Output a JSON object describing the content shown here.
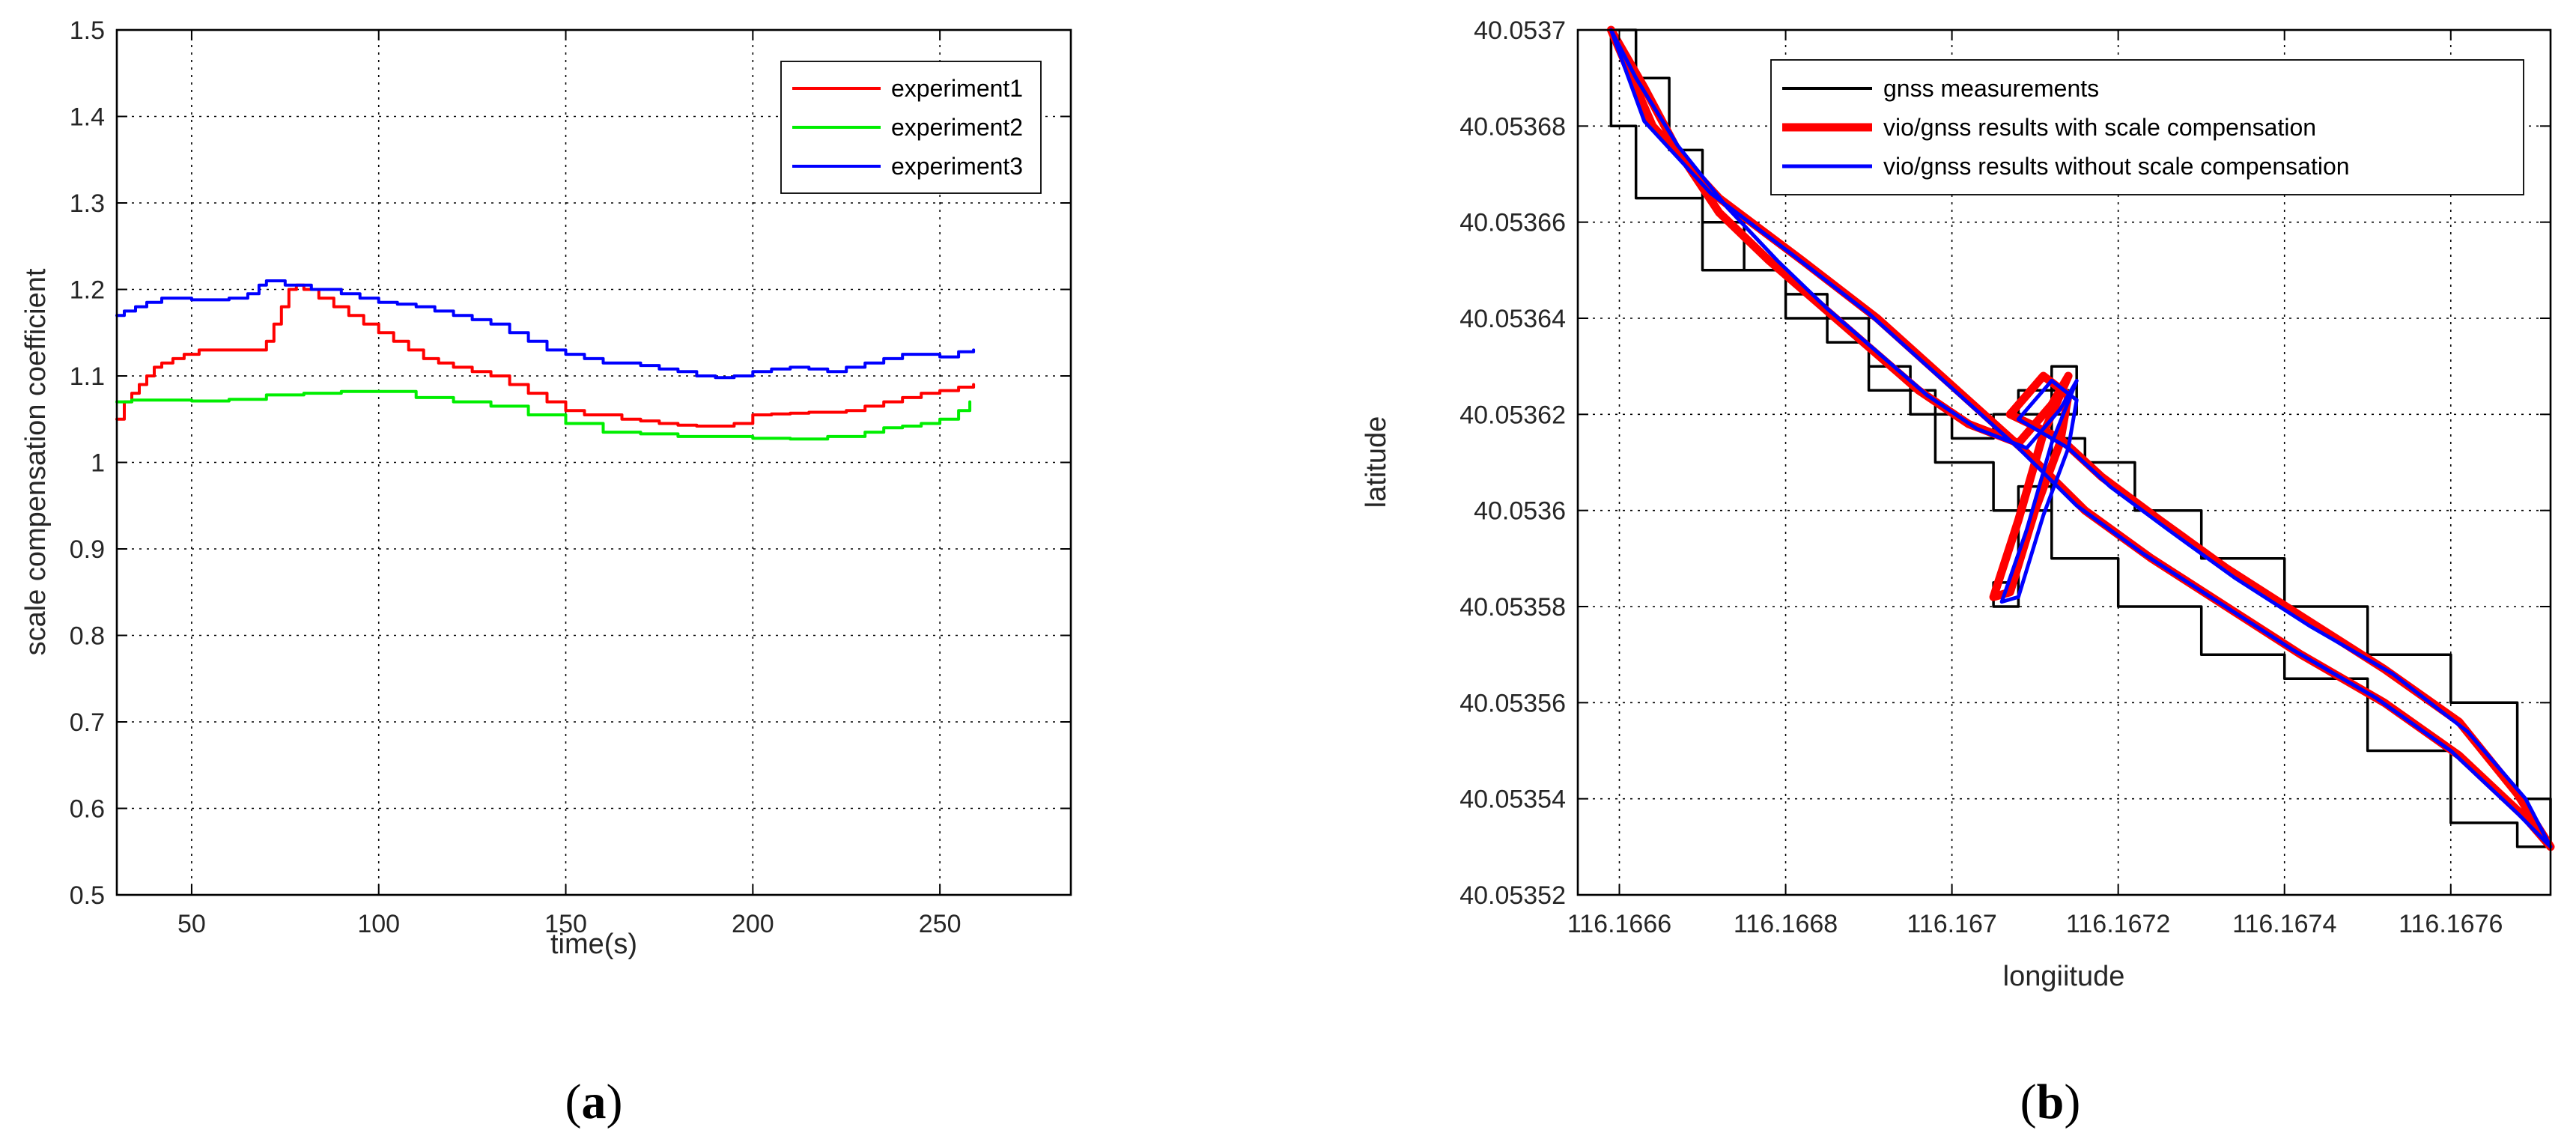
{
  "colors": {
    "red": "#ff0000",
    "green": "#00ee00",
    "blue": "#0000ff",
    "black": "#000000"
  },
  "chart_data": [
    {
      "type": "line",
      "caption_letter": "a",
      "xlabel": "time(s)",
      "ylabel": "scale compensation coefficient",
      "xlim": [
        30,
        285
      ],
      "ylim": [
        0.5,
        1.5
      ],
      "xticks": [
        50,
        100,
        150,
        200,
        250
      ],
      "xtick_labels": [
        "50",
        "100",
        "150",
        "200",
        "250"
      ],
      "yticks": [
        0.5,
        0.6,
        0.7,
        0.8,
        0.9,
        1,
        1.1,
        1.2,
        1.3,
        1.4,
        1.5
      ],
      "ytick_labels": [
        "0.5",
        "0.6",
        "0.7",
        "0.8",
        "0.9",
        "1",
        "1.1",
        "1.2",
        "1.3",
        "1.4",
        "1.5"
      ],
      "grid": true,
      "legend_position": "top-right",
      "series": [
        {
          "name": "experiment1",
          "color": "#ff0000",
          "step": true,
          "x": [
            30,
            32,
            34,
            36,
            38,
            40,
            42,
            45,
            48,
            52,
            58,
            62,
            66,
            70,
            72,
            74,
            76,
            78,
            80,
            84,
            88,
            92,
            96,
            100,
            104,
            108,
            112,
            116,
            120,
            125,
            130,
            135,
            140,
            145,
            150,
            155,
            160,
            165,
            170,
            175,
            180,
            185,
            190,
            195,
            200,
            205,
            210,
            215,
            220,
            225,
            230,
            235,
            240,
            245,
            250,
            255,
            259
          ],
          "y": [
            1.05,
            1.07,
            1.08,
            1.09,
            1.1,
            1.11,
            1.115,
            1.12,
            1.125,
            1.13,
            1.13,
            1.13,
            1.13,
            1.14,
            1.16,
            1.18,
            1.2,
            1.205,
            1.2,
            1.19,
            1.18,
            1.17,
            1.16,
            1.15,
            1.14,
            1.13,
            1.12,
            1.115,
            1.11,
            1.105,
            1.1,
            1.09,
            1.08,
            1.07,
            1.06,
            1.055,
            1.055,
            1.05,
            1.048,
            1.045,
            1.043,
            1.042,
            1.042,
            1.045,
            1.055,
            1.056,
            1.057,
            1.058,
            1.058,
            1.06,
            1.065,
            1.07,
            1.075,
            1.08,
            1.083,
            1.087,
            1.09
          ]
        },
        {
          "name": "experiment2",
          "color": "#00ee00",
          "step": true,
          "x": [
            30,
            34,
            40,
            50,
            60,
            70,
            80,
            90,
            100,
            110,
            120,
            130,
            140,
            150,
            160,
            170,
            180,
            190,
            200,
            210,
            220,
            225,
            230,
            235,
            240,
            245,
            250,
            255,
            258
          ],
          "y": [
            1.07,
            1.072,
            1.072,
            1.071,
            1.073,
            1.078,
            1.08,
            1.082,
            1.082,
            1.075,
            1.07,
            1.065,
            1.055,
            1.045,
            1.035,
            1.033,
            1.03,
            1.03,
            1.028,
            1.027,
            1.03,
            1.03,
            1.035,
            1.04,
            1.042,
            1.045,
            1.05,
            1.06,
            1.07
          ]
        },
        {
          "name": "experiment3",
          "color": "#0000ff",
          "step": true,
          "x": [
            30,
            32,
            35,
            38,
            42,
            46,
            50,
            55,
            60,
            65,
            68,
            70,
            72,
            75,
            78,
            82,
            86,
            90,
            95,
            100,
            105,
            110,
            115,
            120,
            125,
            130,
            135,
            140,
            145,
            150,
            155,
            160,
            165,
            170,
            175,
            180,
            185,
            190,
            195,
            200,
            205,
            210,
            215,
            220,
            225,
            230,
            235,
            240,
            245,
            250,
            255,
            259
          ],
          "y": [
            1.17,
            1.175,
            1.18,
            1.185,
            1.19,
            1.19,
            1.188,
            1.188,
            1.19,
            1.195,
            1.205,
            1.21,
            1.21,
            1.205,
            1.205,
            1.2,
            1.2,
            1.195,
            1.19,
            1.185,
            1.183,
            1.18,
            1.175,
            1.17,
            1.165,
            1.16,
            1.15,
            1.14,
            1.13,
            1.125,
            1.12,
            1.115,
            1.115,
            1.112,
            1.108,
            1.105,
            1.1,
            1.098,
            1.1,
            1.105,
            1.108,
            1.11,
            1.108,
            1.105,
            1.11,
            1.115,
            1.12,
            1.125,
            1.125,
            1.122,
            1.128,
            1.13
          ]
        }
      ]
    },
    {
      "type": "line",
      "caption_letter": "b",
      "xlabel": "longiitude",
      "ylabel": "latitude",
      "xlim": [
        116.16655,
        116.16772
      ],
      "ylim": [
        40.05352,
        40.0537
      ],
      "xticks": [
        116.1666,
        116.1668,
        116.167,
        116.1672,
        116.1674,
        116.1676
      ],
      "xtick_labels": [
        "116.1666",
        "116.1668",
        "116.167",
        "116.1672",
        "116.1674",
        "116.1676"
      ],
      "yticks": [
        40.05352,
        40.05354,
        40.05356,
        40.05358,
        40.0536,
        40.05362,
        40.05364,
        40.05366,
        40.05368,
        40.0537
      ],
      "ytick_labels": [
        "40.05352",
        "40.05354",
        "40.05356",
        "40.05358",
        "40.0536",
        "40.05362",
        "40.05364",
        "40.05366",
        "40.05368",
        "40.0537"
      ],
      "grid": true,
      "legend_position": "top-right",
      "series": [
        {
          "name": "gnss measurements",
          "color": "#000000",
          "step": true,
          "x": [
            116.16659,
            116.16662,
            116.16666,
            116.1667,
            116.16675,
            116.1668,
            116.16685,
            116.1669,
            116.16695,
            116.167,
            116.16705,
            116.16712,
            116.16715,
            116.16712,
            116.16708,
            116.16705,
            116.16708,
            116.16712,
            116.16714,
            116.16712,
            116.16708,
            116.16712,
            116.16716,
            116.16722,
            116.1673,
            116.1674,
            116.1675,
            116.1676,
            116.16768,
            116.16772,
            116.16768,
            116.1676,
            116.1675,
            116.1674,
            116.1673,
            116.1672,
            116.16712,
            116.16705,
            116.16698,
            116.1669,
            116.1668,
            116.1667,
            116.16662,
            116.16659
          ],
          "y": [
            40.0537,
            40.05369,
            40.053675,
            40.05366,
            40.05365,
            40.053645,
            40.053635,
            40.05363,
            40.05362,
            40.053615,
            40.05362,
            40.05363,
            40.05362,
            40.0536,
            40.05358,
            40.053585,
            40.053605,
            40.05362,
            40.053625,
            40.053625,
            40.05362,
            40.053615,
            40.05361,
            40.0536,
            40.05359,
            40.05358,
            40.05357,
            40.05356,
            40.05354,
            40.05353,
            40.053535,
            40.05355,
            40.053565,
            40.05357,
            40.05358,
            40.05359,
            40.0536,
            40.05361,
            40.053625,
            40.05364,
            40.05365,
            40.053665,
            40.05368,
            40.0537
          ]
        },
        {
          "name": "vio/gnss results with scale compensation",
          "color": "#ff0000",
          "step": false,
          "x": [
            116.16659,
            116.16663,
            116.16667,
            116.16672,
            116.16678,
            116.16684,
            116.1669,
            116.16696,
            116.16702,
            116.16708,
            116.16712,
            116.16714,
            116.16711,
            116.16708,
            116.16705,
            116.16707,
            116.1671,
            116.16713,
            116.16714,
            116.16711,
            116.16707,
            116.16713,
            116.16718,
            116.16725,
            116.16733,
            116.16742,
            116.16752,
            116.16761,
            116.16768,
            116.16772,
            116.16769,
            116.16761,
            116.16752,
            116.16742,
            116.16733,
            116.16724,
            116.16716,
            116.16709,
            116.167,
            116.16691,
            116.16682,
            116.16672,
            116.16664,
            116.16659
          ],
          "y": [
            40.0537,
            40.053688,
            40.053675,
            40.053662,
            40.053652,
            40.053643,
            40.053634,
            40.053625,
            40.053618,
            40.053614,
            40.053622,
            40.053628,
            40.053616,
            40.053598,
            40.053582,
            40.053583,
            40.0536,
            40.053614,
            40.053624,
            40.053628,
            40.05362,
            40.053615,
            40.053607,
            40.053598,
            40.053588,
            40.053578,
            40.053567,
            40.053556,
            40.053541,
            40.05353,
            40.053536,
            40.053549,
            40.05356,
            40.05357,
            40.05358,
            40.05359,
            40.0536,
            40.053612,
            40.053626,
            40.05364,
            40.053652,
            40.053665,
            40.05368,
            40.0537
          ]
        },
        {
          "name": "vio/gnss results without scale compensation",
          "color": "#0000ff",
          "step": false,
          "x": [
            116.16659,
            116.16662,
            116.16667,
            116.16673,
            116.16679,
            116.16685,
            116.16691,
            116.16697,
            116.16703,
            116.16709,
            116.16713,
            116.16715,
            116.16712,
            116.16709,
            116.16706,
            116.16708,
            116.16711,
            116.16714,
            116.16715,
            116.16712,
            116.16708,
            116.16714,
            116.16719,
            116.16726,
            116.16734,
            116.16743,
            116.16753,
            116.16762,
            116.16769,
            116.16772,
            116.16768,
            116.1676,
            116.16751,
            116.16741,
            116.16732,
            116.16723,
            116.16715,
            116.16708,
            116.16699,
            116.1669,
            116.16681,
            116.16671,
            116.16663,
            116.16659
          ],
          "y": [
            40.0537,
            40.05369,
            40.053676,
            40.053663,
            40.053652,
            40.053642,
            40.053633,
            40.053624,
            40.053617,
            40.053613,
            40.053621,
            40.053627,
            40.053614,
            40.053596,
            40.053581,
            40.053582,
            40.053599,
            40.053613,
            40.053623,
            40.053627,
            40.053619,
            40.053613,
            40.053605,
            40.053596,
            40.053586,
            40.053576,
            40.053566,
            40.053554,
            40.05354,
            40.05353,
            40.053537,
            40.05355,
            40.053561,
            40.053571,
            40.053581,
            40.053591,
            40.053601,
            40.053613,
            40.053627,
            40.053641,
            40.053653,
            40.053666,
            40.053681,
            40.0537
          ]
        }
      ]
    }
  ]
}
